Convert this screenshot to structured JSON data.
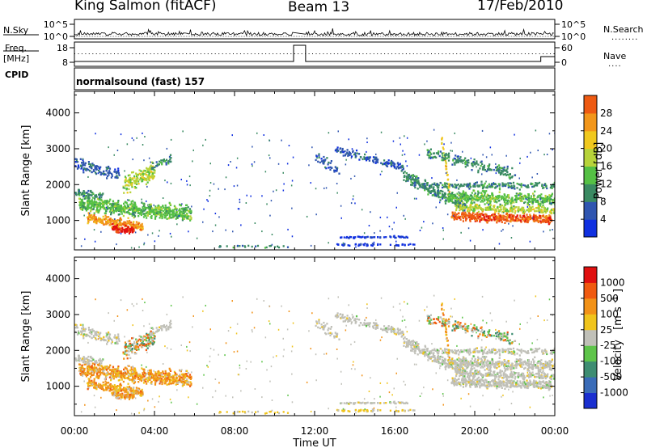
{
  "header": {
    "station": "King Salmon (fitACF)",
    "beam": "Beam 13",
    "date": "17/Feb/2010"
  },
  "side_labels": {
    "nsky": "N.Sky",
    "freq_line1": "Freq.",
    "freq_line2": "[MHz]",
    "cpid": "CPID",
    "nsearch": "N.Search",
    "nave": "Nave",
    "dots": "........"
  },
  "cpid_text": "normalsound (fast) 157",
  "colors": {
    "power_scale": [
      "#1030e0",
      "#2f55b0",
      "#3a8a62",
      "#55c045",
      "#b7d33a",
      "#f0c81e",
      "#f2961a",
      "#ee5a12",
      "#e21010"
    ],
    "velocity_scale": [
      "#1a2fd0",
      "#3a6cb8",
      "#3e8d72",
      "#5ec44a",
      "#c0c0b8",
      "#f0c41c",
      "#f29218",
      "#f05a10",
      "#e01010"
    ]
  },
  "chart_data": [
    {
      "type": "line",
      "name": "noise-search-panel",
      "left_axis": {
        "ticks": [
          "10^5",
          "10^0"
        ]
      },
      "right_axis": {
        "ticks": [
          "10^5",
          "10^0"
        ]
      },
      "description_series": [
        "N.Sky",
        "N.Search"
      ]
    },
    {
      "type": "line",
      "name": "freq-nave-panel",
      "left_axis": {
        "ticks": [
          "18",
          "8"
        ]
      },
      "right_axis": {
        "ticks": [
          "60",
          "0"
        ]
      },
      "series_labels": [
        "Freq. [MHz]",
        "Nave"
      ]
    },
    {
      "type": "heatmap",
      "name": "power-panel",
      "ylabel": "Slant Range [km]",
      "y_ticks": [
        "1000",
        "2000",
        "3000",
        "4000"
      ],
      "ylim": [
        180,
        4600
      ],
      "colorbar": {
        "label": "Power [dB]",
        "ticks": [
          "4",
          "8",
          "12",
          "16",
          "20",
          "24",
          "28"
        ],
        "range": [
          0,
          30
        ]
      }
    },
    {
      "type": "heatmap",
      "name": "velocity-panel",
      "ylabel": "Slant Range [km]",
      "y_ticks": [
        "1000",
        "2000",
        "3000",
        "4000"
      ],
      "ylim": [
        180,
        4600
      ],
      "colorbar": {
        "label": "Velocity [m s-1]",
        "ticks": [
          "1000",
          "500",
          "100",
          "25",
          "-25",
          "-100",
          "-500",
          "-1000"
        ]
      }
    }
  ],
  "x_axis": {
    "ticks": [
      "00:00",
      "04:00",
      "08:00",
      "12:00",
      "16:00",
      "20:00",
      "00:00"
    ],
    "xlabel": "Time UT",
    "range_hours": [
      0,
      24
    ]
  },
  "colorbar_labels": {
    "power": "Power [dB]",
    "velocity_main": "Velocity",
    "velocity_unit": "[m s",
    "velocity_sup": "-1",
    "velocity_close": "]"
  }
}
